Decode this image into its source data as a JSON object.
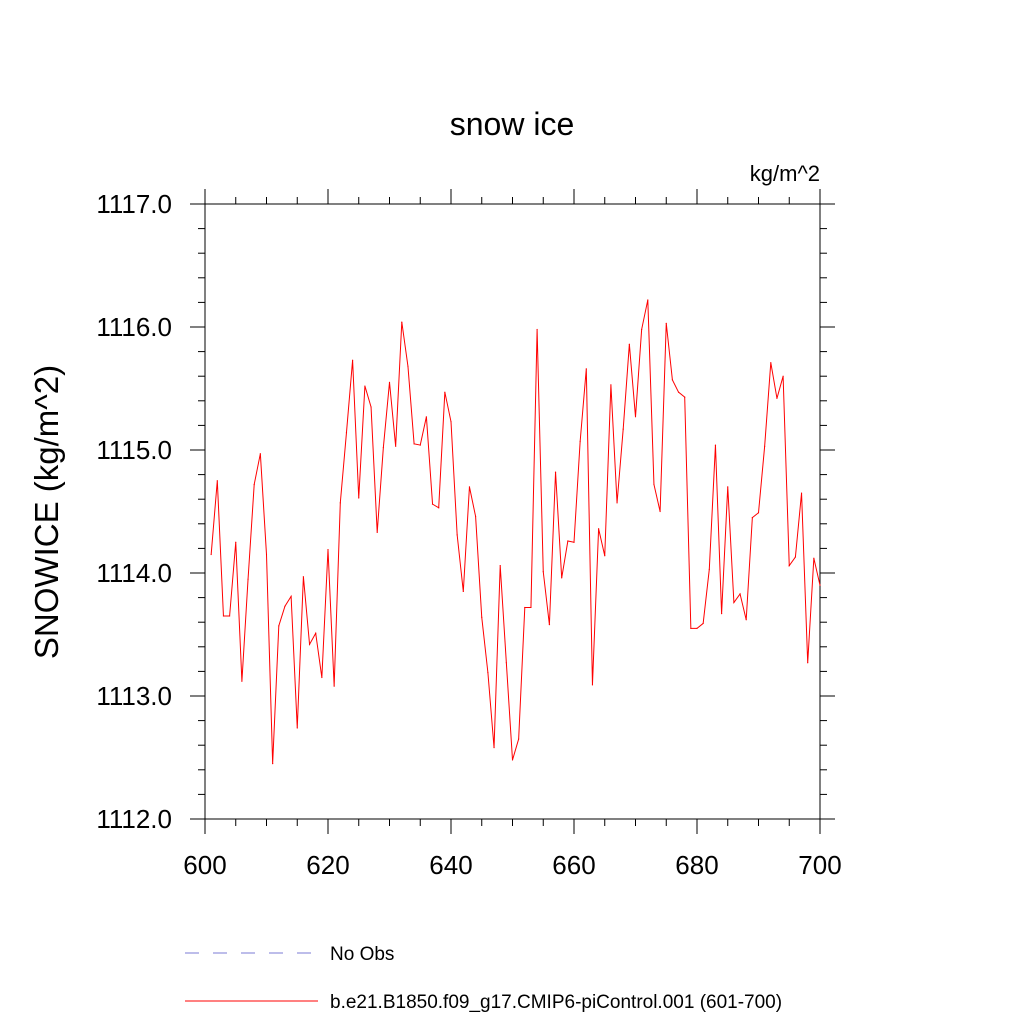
{
  "chart_data": {
    "type": "line",
    "title": "snow ice",
    "units_label": "kg/m^2",
    "ylabel": "SNOWICE  (kg/m^2)",
    "xlabel": "",
    "xlim": [
      600,
      700
    ],
    "ylim": [
      1112.0,
      1117.0
    ],
    "x_ticks": [
      600,
      620,
      640,
      660,
      680,
      700
    ],
    "x_tick_labels": [
      "600",
      "620",
      "640",
      "660",
      "680",
      "700"
    ],
    "y_ticks": [
      1112.0,
      1113.0,
      1114.0,
      1115.0,
      1116.0,
      1117.0
    ],
    "y_tick_labels": [
      "1112.0",
      "1113.0",
      "1114.0",
      "1115.0",
      "1116.0",
      "1117.0"
    ],
    "grid": false,
    "legend_placement": "bottom",
    "series": [
      {
        "name": "No Obs",
        "color": "#7b7bd6",
        "dashed": true,
        "x": [],
        "values": []
      },
      {
        "name": "b.e21.B1850.f09_g17.CMIP6-piControl.001 (601-700)",
        "color": "#ff0000",
        "dashed": false,
        "x": [
          601,
          602,
          603,
          604,
          605,
          606,
          607,
          608,
          609,
          610,
          611,
          612,
          613,
          614,
          615,
          616,
          617,
          618,
          619,
          620,
          621,
          622,
          623,
          624,
          625,
          626,
          627,
          628,
          629,
          630,
          631,
          632,
          633,
          634,
          635,
          636,
          637,
          638,
          639,
          640,
          641,
          642,
          643,
          644,
          645,
          646,
          647,
          648,
          649,
          650,
          651,
          652,
          653,
          654,
          655,
          656,
          657,
          658,
          659,
          660,
          661,
          662,
          663,
          664,
          665,
          666,
          667,
          668,
          669,
          670,
          671,
          672,
          673,
          674,
          675,
          676,
          677,
          678,
          679,
          680,
          681,
          682,
          683,
          684,
          685,
          686,
          687,
          688,
          689,
          690,
          691,
          692,
          693,
          694,
          695,
          696,
          697,
          698,
          699,
          700
        ],
        "values": [
          1114.15,
          1114.75,
          1113.65,
          1113.65,
          1114.25,
          1113.12,
          1113.95,
          1114.72,
          1114.97,
          1114.15,
          1112.45,
          1113.57,
          1113.73,
          1113.81,
          1112.74,
          1113.97,
          1113.42,
          1113.51,
          1113.15,
          1114.19,
          1113.08,
          1114.57,
          1115.14,
          1115.73,
          1114.61,
          1115.52,
          1115.35,
          1114.33,
          1115.02,
          1115.55,
          1115.03,
          1116.04,
          1115.68,
          1115.05,
          1115.04,
          1115.27,
          1114.56,
          1114.53,
          1115.47,
          1115.23,
          1114.31,
          1113.85,
          1114.7,
          1114.46,
          1113.64,
          1113.19,
          1112.58,
          1114.06,
          1113.27,
          1112.48,
          1112.65,
          1113.72,
          1113.72,
          1115.98,
          1114.01,
          1113.58,
          1114.82,
          1113.96,
          1114.26,
          1114.25,
          1115.07,
          1115.66,
          1113.09,
          1114.36,
          1114.14,
          1115.53,
          1114.57,
          1115.17,
          1115.86,
          1115.27,
          1115.98,
          1116.22,
          1114.72,
          1114.5,
          1116.03,
          1115.57,
          1115.47,
          1115.43,
          1113.55,
          1113.55,
          1113.59,
          1114.03,
          1115.04,
          1113.67,
          1114.7,
          1113.76,
          1113.83,
          1113.62,
          1114.45,
          1114.49,
          1115.03,
          1115.71,
          1115.42,
          1115.6,
          1114.06,
          1114.13,
          1114.65,
          1113.27,
          1114.12,
          1113.9
        ]
      }
    ]
  }
}
